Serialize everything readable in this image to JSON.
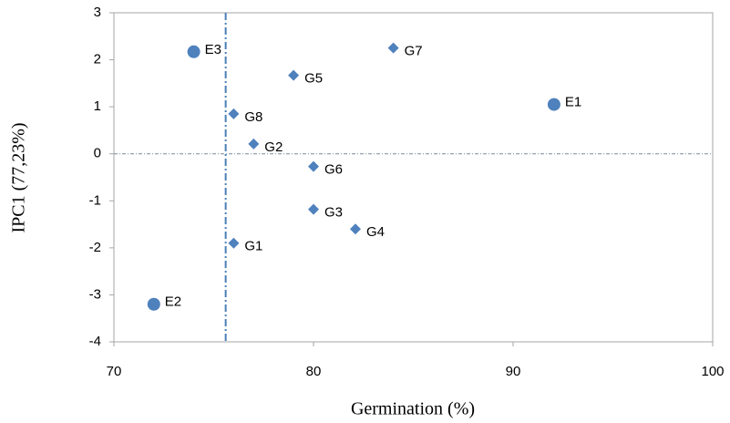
{
  "chart_data": {
    "type": "scatter",
    "x_label": "Germination (%)",
    "y_label": "IPC1 (77,23%)",
    "xlim": [
      70,
      100
    ],
    "xticks": [
      70,
      80,
      90,
      100
    ],
    "ylim": [
      -4,
      3
    ],
    "yticks": [
      -4,
      -3,
      -2,
      -1,
      0,
      1,
      2,
      3
    ],
    "vline": 75.6,
    "hline": 0,
    "series": [
      {
        "marker": "circle",
        "color": "#4f81bd",
        "labels": [
          "E1",
          "E2",
          "E3"
        ],
        "x": [
          92.05,
          72.0,
          74.0
        ],
        "y": [
          1.05,
          -3.2,
          2.17
        ]
      },
      {
        "marker": "diamond",
        "color": "#4f81bd",
        "labels": [
          "G1",
          "G2",
          "G3",
          "G4",
          "G5",
          "G6",
          "G7",
          "G8"
        ],
        "x": [
          76.0,
          77.0,
          80.0,
          82.1,
          79.0,
          80.0,
          84.0,
          76.0
        ],
        "y": [
          -1.9,
          0.21,
          -1.18,
          -1.6,
          1.67,
          -0.27,
          2.25,
          0.85
        ]
      }
    ]
  }
}
